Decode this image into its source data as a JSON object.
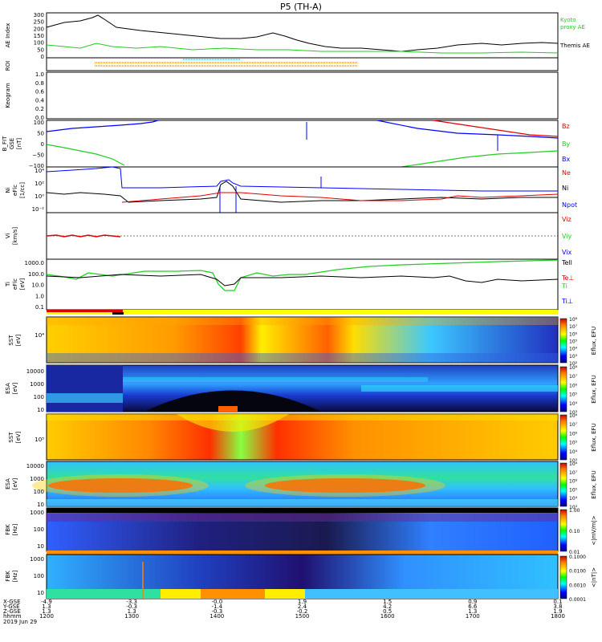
{
  "title": "P5 (TH-A)",
  "colors": {
    "ae_kyoto": "#22cc22",
    "ae_themis": "#000000",
    "bz": "#dd0000",
    "by": "#22cc22",
    "bx": "#0000ff",
    "ne": "#dd0000",
    "ni": "#0000ff",
    "npot": "#000000",
    "te_perp": "#dd0000",
    "ti": "#22cc22",
    "ti_perp": "#0000ff",
    "te_par": "#000000"
  },
  "panels": {
    "ae": {
      "ylabel": "AE Index",
      "ticks": [
        "300",
        "250",
        "200",
        "150",
        "100",
        "50",
        "0"
      ],
      "legend": [
        "Kyoto",
        "proxy AE",
        "Themis AE"
      ]
    },
    "roi": {
      "ylabel": "ROI"
    },
    "keogram": {
      "ylabel": "Keogram",
      "ticks": [
        "1.0",
        "0.8",
        "0.6",
        "0.4",
        "0.2",
        "0.0"
      ]
    },
    "bfit": {
      "ylabel": [
        "B_FIT",
        "GSE",
        "[nT]"
      ],
      "ticks": [
        "100",
        "50",
        "0",
        "−50",
        "−100"
      ],
      "legend": [
        "Bz",
        "By",
        "Bx"
      ]
    },
    "ni": {
      "ylabel": [
        "Ni",
        "eFlc",
        "[1/cc]"
      ],
      "ticks": [
        "10⁴",
        "10²",
        "10⁰",
        "10⁻²"
      ],
      "legend": [
        "Ne",
        "Ni",
        "Npot"
      ]
    },
    "vi": {
      "ylabel": [
        "Vi",
        "[km/s]"
      ],
      "legend": [
        "Viz",
        "Viy",
        "Vix"
      ]
    },
    "ti": {
      "ylabel": [
        "Ti",
        "eFlc",
        "[eV]"
      ],
      "ticks": [
        "1000.0",
        "100.0",
        "10.0",
        "1.0",
        "0.1"
      ],
      "legend": [
        "Tell",
        "Te⊥",
        "Ti",
        "Ti⊥"
      ]
    },
    "sst_e": {
      "ylabel": [
        "SST",
        "[eV]"
      ],
      "ticks": [
        "10⁴"
      ],
      "cbar_label": "Eflux, EFU",
      "cbar_ticks": [
        "10⁸",
        "10⁷",
        "10⁶",
        "10⁵",
        "10⁴",
        "10³",
        "10²"
      ]
    },
    "esa_e": {
      "ylabel": [
        "ESA",
        "[eV]"
      ],
      "ticks": [
        "10000",
        "1000",
        "100",
        "10"
      ],
      "cbar_label": "Eflux, EFU",
      "cbar_ticks": [
        "10⁸",
        "10⁷",
        "10⁶",
        "10⁵",
        "10⁴",
        "10³"
      ]
    },
    "sst_i": {
      "ylabel": [
        "SST",
        "[eV]"
      ],
      "ticks": [
        "10⁵"
      ],
      "cbar_label": "Eflux, EFU",
      "cbar_ticks": [
        "10⁸",
        "10⁷",
        "10⁶",
        "10⁵",
        "10⁴",
        "10³"
      ]
    },
    "esa_i": {
      "ylabel": [
        "ESA",
        "[eV]"
      ],
      "ticks": [
        "10000",
        "1000",
        "100",
        "10"
      ],
      "cbar_label": "Eflux, EFU",
      "cbar_ticks": [
        "10⁸",
        "10⁷",
        "10⁶",
        "10⁵",
        "10⁴",
        "10³"
      ]
    },
    "fbk1": {
      "ylabel": [
        "FBK",
        "[Hz]"
      ],
      "ticks": [
        "1000",
        "100",
        "10"
      ],
      "cbar_label": "<|mV/m|>",
      "cbar_ticks": [
        "1.00",
        "0.10",
        "0.01"
      ]
    },
    "fbk2": {
      "ylabel": [
        "FBK",
        "[Hz]"
      ],
      "ticks": [
        "1000",
        "100",
        "10"
      ],
      "cbar_label": "<|nT|>",
      "cbar_ticks": [
        "0.1000",
        "0.0100",
        "0.0010",
        "0.0001"
      ]
    }
  },
  "footer": {
    "row_labels": [
      "X-GSE",
      "Y-GSE",
      "Z-GSE",
      "hhmm",
      "2019 Jun 29"
    ],
    "columns": [
      {
        "x": "-4.9",
        "y": "1.3",
        "z": "1.3",
        "t": "1200"
      },
      {
        "x": "-3.3",
        "y": "-0.3",
        "z": "1.3",
        "t": "1300"
      },
      {
        "x": "-0.0",
        "y": "-1.4",
        "z": "-0.3",
        "t": "1400"
      },
      {
        "x": "1.9",
        "y": "2.4",
        "z": "-0.2",
        "t": "1500"
      },
      {
        "x": "1.5",
        "y": "4.2",
        "z": "0.5",
        "t": "1600"
      },
      {
        "x": "0.9",
        "y": "6.6",
        "z": "1.3",
        "t": "1700"
      },
      {
        "x": "0.1",
        "y": "3.8",
        "z": "1.9",
        "t": "1800"
      }
    ]
  },
  "chart_data": {
    "type": "line",
    "title": "P5 (TH-A)",
    "xlabel": "hhmm",
    "x": [
      "1200",
      "1300",
      "1400",
      "1500",
      "1600",
      "1700",
      "1800"
    ],
    "date": "2019 Jun 29",
    "series": [
      {
        "name": "Themis AE",
        "panel": "AE Index",
        "values": [
          200,
          220,
          110,
          150,
          60,
          60,
          70
        ]
      },
      {
        "name": "Kyoto proxy AE",
        "panel": "AE Index",
        "values": [
          80,
          75,
          50,
          50,
          30,
          30,
          25
        ]
      }
    ],
    "ylim": [
      0,
      300
    ]
  }
}
